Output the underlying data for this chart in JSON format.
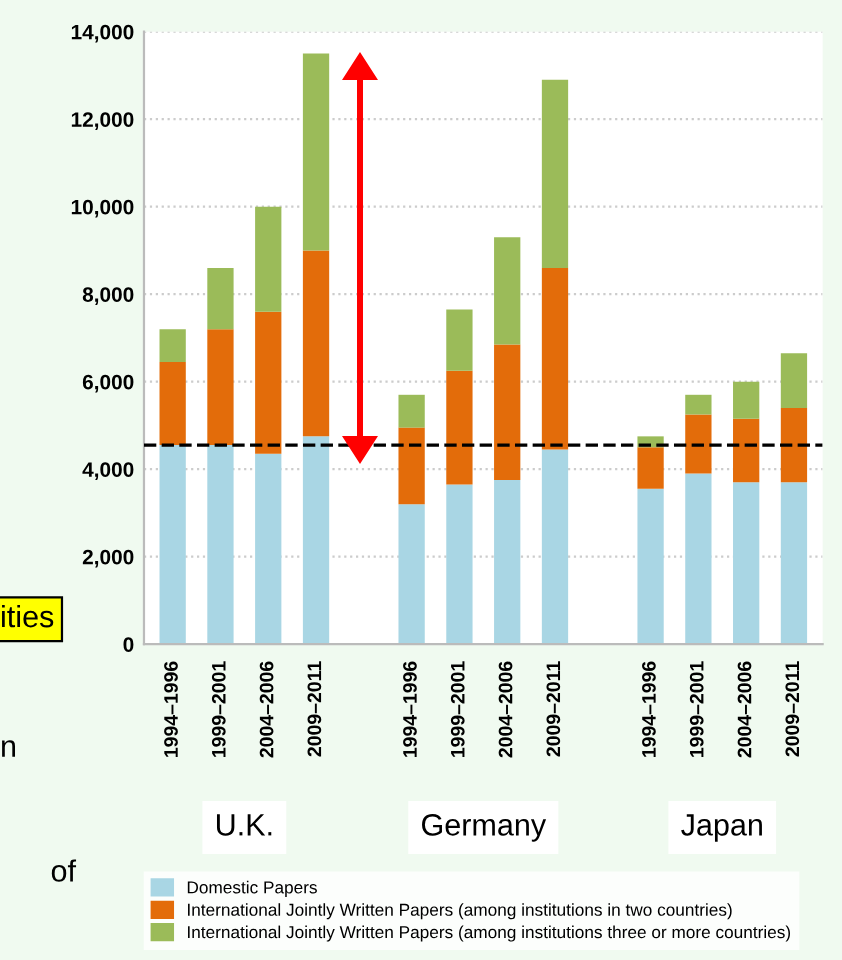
{
  "chart_data": {
    "type": "bar",
    "stacked": true,
    "categories": [
      "1994–1996",
      "1999–2001",
      "2004–2006",
      "2009–2011",
      null,
      "1994–1996",
      "1999–2001",
      "2004–2006",
      "2009–2011",
      null,
      "1994–1996",
      "1999–2001",
      "2004–2006",
      "2009–2011"
    ],
    "series": [
      {
        "name": "Domestic Papers",
        "color": "#a9d6e4",
        "values": [
          4550,
          4550,
          4350,
          4750,
          null,
          3200,
          3650,
          3750,
          4450,
          null,
          3550,
          3900,
          3700,
          3700
        ]
      },
      {
        "name": "International Jointly Written Papers (among institutions in two countries)",
        "color": "#e36c0a",
        "values": [
          1900,
          2650,
          3250,
          4250,
          null,
          1750,
          2600,
          3100,
          4150,
          null,
          950,
          1350,
          1450,
          1700
        ]
      },
      {
        "name": "International Jointly Written Papers (among institutions three or more countries)",
        "color": "#9bbb59",
        "values": [
          750,
          1400,
          2400,
          4500,
          null,
          750,
          1400,
          2450,
          4300,
          null,
          250,
          450,
          850,
          1250
        ]
      }
    ],
    "ylim": [
      0,
      14000
    ],
    "yticks": [
      {
        "value": 0,
        "label": "0"
      },
      {
        "value": 2000,
        "label": "2,000"
      },
      {
        "value": 4000,
        "label": "4,000"
      },
      {
        "value": 6000,
        "label": "6,000"
      },
      {
        "value": 8000,
        "label": "8,000"
      },
      {
        "value": 10000,
        "label": "10,000"
      },
      {
        "value": 12000,
        "label": "12,000"
      },
      {
        "value": 14000,
        "label": "14,000"
      }
    ],
    "ref_lines": [
      {
        "axis": "y",
        "value": 4550,
        "color": "#000000",
        "line_style": "dashed"
      }
    ],
    "annotations": [
      "U.K.",
      "Germany",
      "Japan",
      "ities",
      "n",
      "of"
    ],
    "grid": "y",
    "legend": "bottom"
  }
}
